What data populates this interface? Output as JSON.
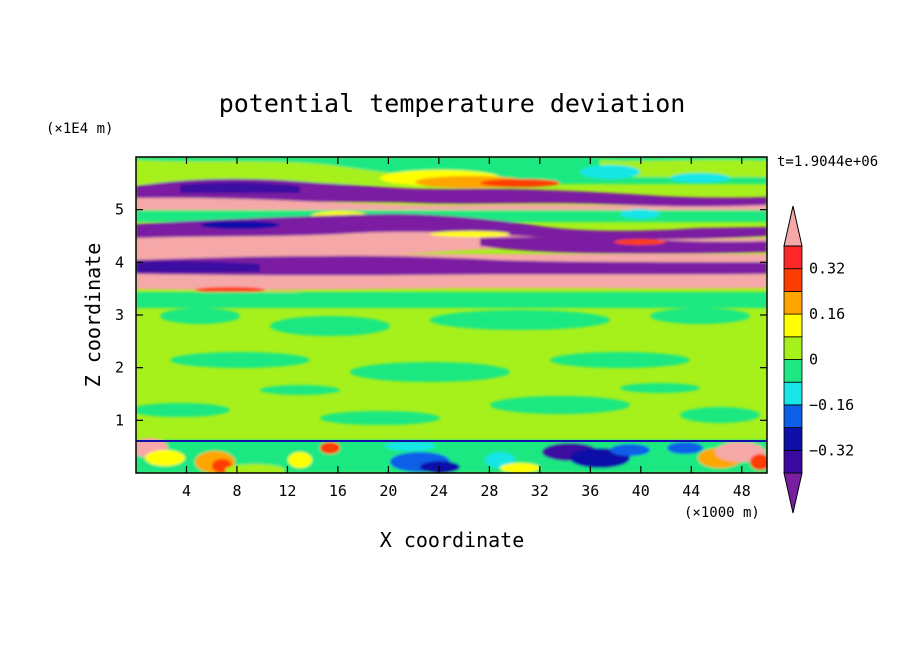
{
  "chart_data": {
    "type": "heatmap",
    "title": "potential temperature deviation",
    "xlabel": "X coordinate",
    "ylabel": "Z coordinate",
    "x_unit": "(×1000 m)",
    "y_unit": "(×1E4 m)",
    "time_label": "t=1.9044e+06",
    "xlim": [
      0,
      50
    ],
    "ylim": [
      0,
      6
    ],
    "x_ticks": [
      4,
      8,
      12,
      16,
      20,
      24,
      28,
      32,
      36,
      40,
      44,
      48
    ],
    "y_ticks": [
      1,
      2,
      3,
      4,
      5
    ],
    "colorbar": {
      "levels": [
        -0.4,
        -0.32,
        -0.24,
        -0.16,
        -0.08,
        0,
        0.08,
        0.16,
        0.24,
        0.32,
        0.4
      ],
      "tick_labels": [
        "0.32",
        "0.16",
        "0",
        "−0.16",
        "−0.32"
      ],
      "tick_values": [
        0.32,
        0.16,
        0,
        -0.16,
        -0.32
      ],
      "colors": [
        "#7b1fa2",
        "#3a0aa0",
        "#1010a8",
        "#0e5fe8",
        "#19e6e6",
        "#1ee882",
        "#a6f01c",
        "#ffff00",
        "#ffa500",
        "#ff3c00",
        "#ff2828",
        "#f6a8a8"
      ],
      "extend": "both"
    },
    "bands": [
      {
        "z": [
          0.0,
          0.6
        ],
        "field": "mixed near-surface values, mostly 0 to 0.08, with warm patches near x=6–8, 14 and 44–48 and cold patches near x=21–25 and 31–37",
        "approx_value": 0.04
      },
      {
        "z": [
          0.6,
          3.4
        ],
        "field": "mostly 0 to 0.08 with patches of −0.08 to 0",
        "approx_value": 0.03
      },
      {
        "z": [
          3.5,
          3.7
        ],
        "field": "above 0.4",
        "approx_value": 0.45
      },
      {
        "z": [
          3.7,
          4.1
        ],
        "field": "below −0.4",
        "approx_value": -0.45
      },
      {
        "z": [
          4.1,
          4.5
        ],
        "field": "above 0.4",
        "approx_value": 0.45
      },
      {
        "z": [
          4.4,
          4.8
        ],
        "field": "below −0.4",
        "approx_value": -0.45
      },
      {
        "z": [
          4.9,
          5.3
        ],
        "field": "above 0.4",
        "approx_value": 0.45
      },
      {
        "z": [
          5.2,
          5.7
        ],
        "field": "below −0.4",
        "approx_value": -0.45
      },
      {
        "z": [
          5.7,
          6.0
        ],
        "field": "−0.08 to 0.24",
        "approx_value": 0.05
      }
    ]
  }
}
